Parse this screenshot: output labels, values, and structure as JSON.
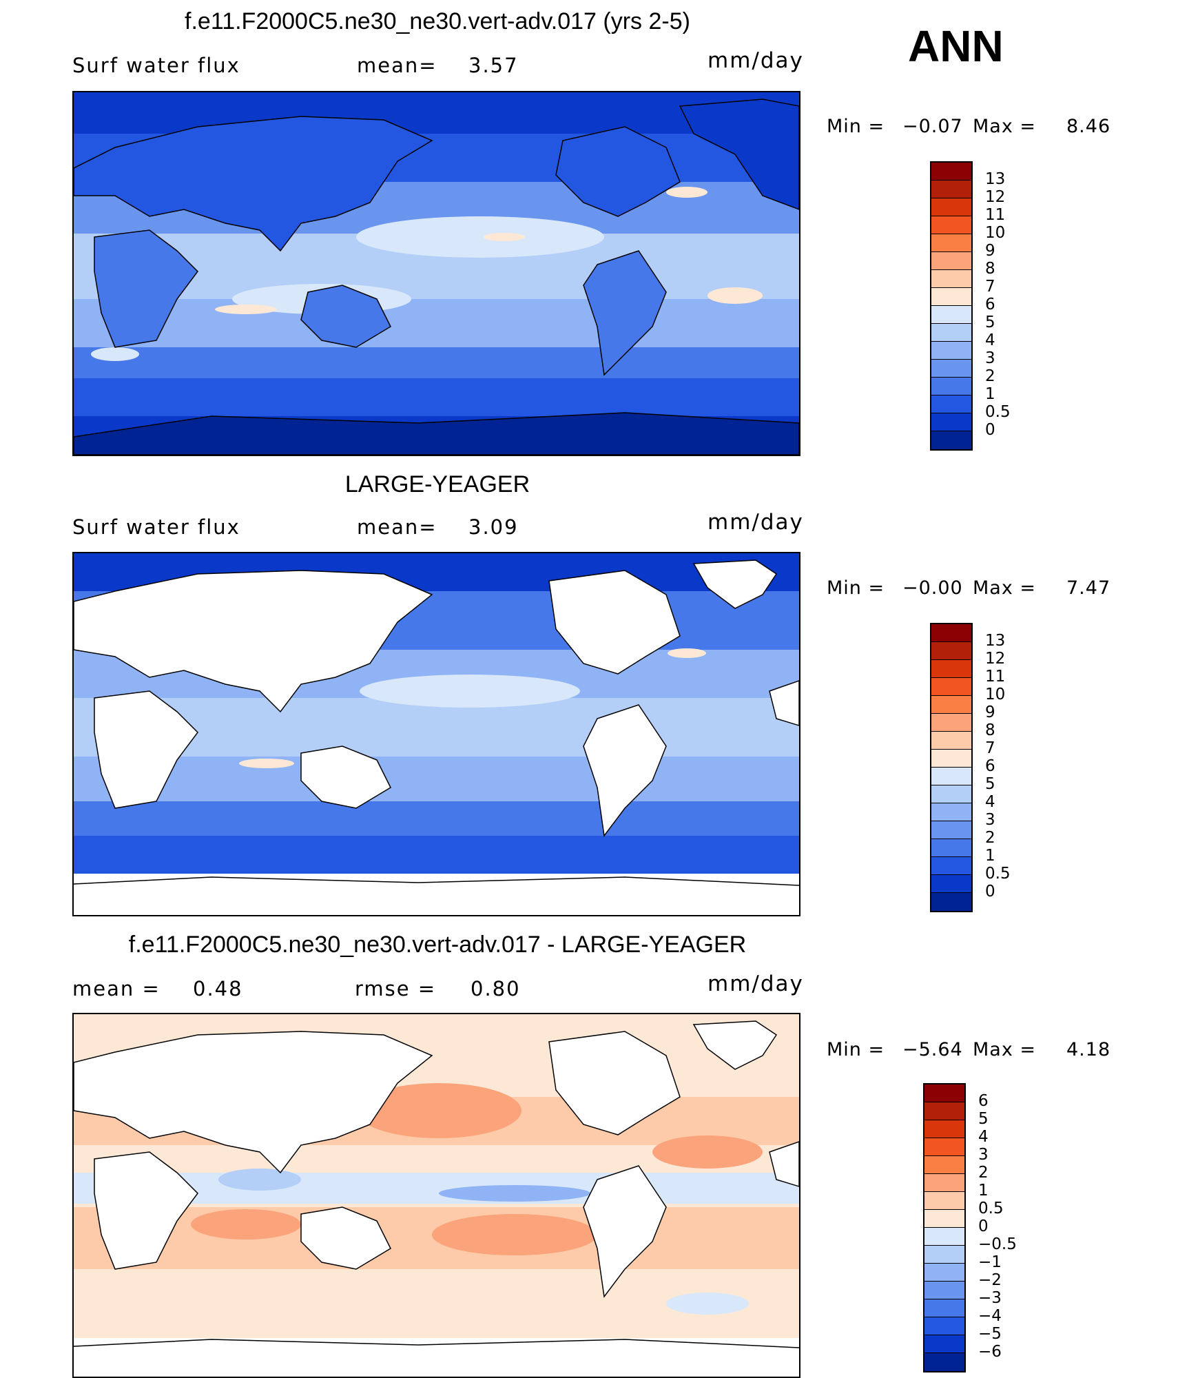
{
  "season": "ANN",
  "panels": [
    {
      "title": "f.e11.F2000C5.ne30_ne30.vert-adv.017 (yrs 2-5)",
      "variable": "Surf water flux",
      "stat1_label": "mean=",
      "stat1_value": "3.57",
      "stat2_label": "",
      "stat2_value": "",
      "units": "mm/day",
      "min_label": "Min =",
      "min_value": "−0.07",
      "max_label": "Max =",
      "max_value": "8.46",
      "colorbar": {
        "labels": [
          "13",
          "12",
          "11",
          "10",
          "9",
          "8",
          "7",
          "6",
          "5",
          "4",
          "3",
          "2",
          "1",
          "0.5",
          "0"
        ],
        "colors": [
          "#8b0000",
          "#b3200a",
          "#d9360c",
          "#f25522",
          "#fa7f45",
          "#fba37a",
          "#fdcbaa",
          "#fde8d6",
          "#d8e8fa",
          "#b4cff7",
          "#8fb3f4",
          "#6a95ef",
          "#4678ea",
          "#2357e2",
          "#0a38c9",
          "#002393"
        ]
      }
    },
    {
      "title": "LARGE-YEAGER",
      "variable": "Surf water flux",
      "stat1_label": "mean=",
      "stat1_value": "3.09",
      "stat2_label": "",
      "stat2_value": "",
      "units": "mm/day",
      "min_label": "Min =",
      "min_value": "−0.00",
      "max_label": "Max =",
      "max_value": "7.47",
      "colorbar": {
        "labels": [
          "13",
          "12",
          "11",
          "10",
          "9",
          "8",
          "7",
          "6",
          "5",
          "4",
          "3",
          "2",
          "1",
          "0.5",
          "0"
        ],
        "colors": [
          "#8b0000",
          "#b3200a",
          "#d9360c",
          "#f25522",
          "#fa7f45",
          "#fba37a",
          "#fdcbaa",
          "#fde8d6",
          "#d8e8fa",
          "#b4cff7",
          "#8fb3f4",
          "#6a95ef",
          "#4678ea",
          "#2357e2",
          "#0a38c9",
          "#002393"
        ]
      }
    },
    {
      "title": "f.e11.F2000C5.ne30_ne30.vert-adv.017 - LARGE-YEAGER",
      "variable": "",
      "stat1_label": "mean =",
      "stat1_value": "0.48",
      "stat2_label": "rmse =",
      "stat2_value": "0.80",
      "units": "mm/day",
      "min_label": "Min =",
      "min_value": "−5.64",
      "max_label": "Max =",
      "max_value": "4.18",
      "colorbar": {
        "labels": [
          "6",
          "5",
          "4",
          "3",
          "2",
          "1",
          "0.5",
          "0",
          "−0.5",
          "−1",
          "−2",
          "−3",
          "−4",
          "−5",
          "−6"
        ],
        "colors": [
          "#8b0000",
          "#b3200a",
          "#d9360c",
          "#f25522",
          "#fa7f45",
          "#fba37a",
          "#fdcbaa",
          "#fde8d6",
          "#d8e8fa",
          "#b4cff7",
          "#8fb3f4",
          "#6a95ef",
          "#4678ea",
          "#2357e2",
          "#0a38c9",
          "#002393"
        ]
      }
    }
  ]
}
